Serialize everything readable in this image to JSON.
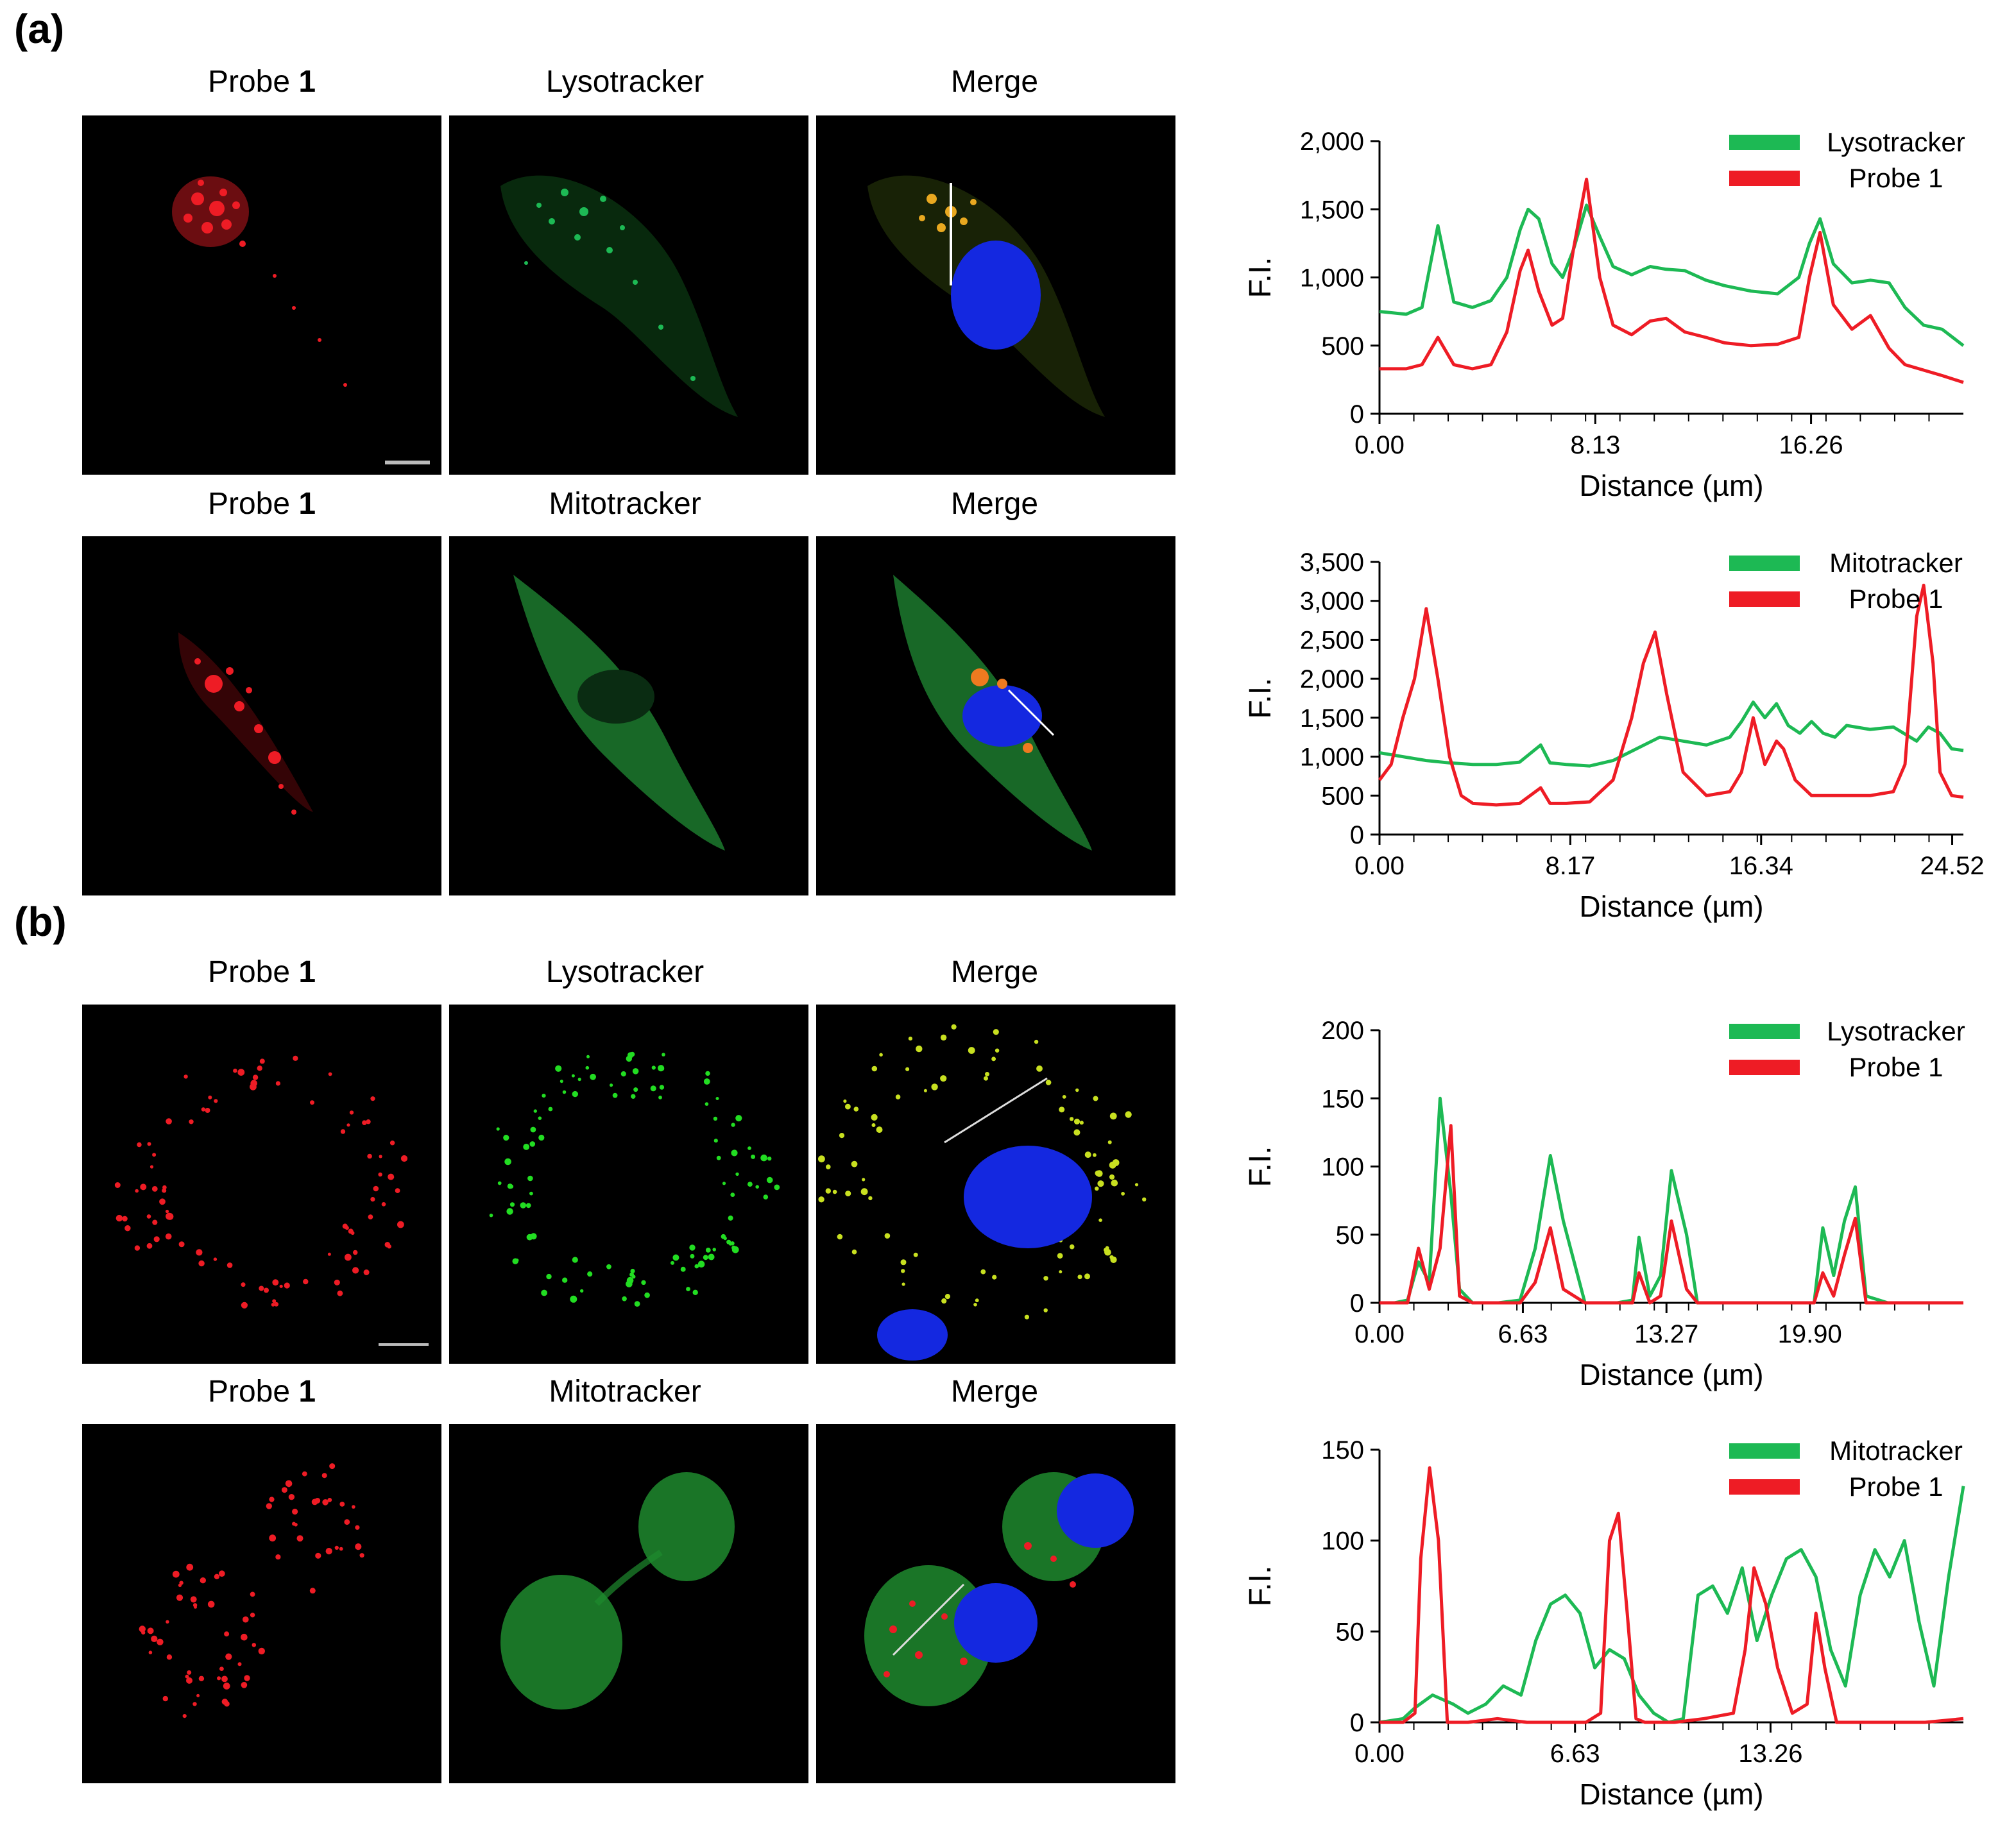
{
  "panel_letters": [
    "(a)",
    "(b)"
  ],
  "rows": [
    {
      "labels": [
        {
          "text": "Probe ",
          "num": "1"
        },
        {
          "text": "Lysotracker",
          "num": ""
        },
        {
          "text": "Merge",
          "num": ""
        }
      ]
    },
    {
      "labels": [
        {
          "text": "Probe ",
          "num": "1"
        },
        {
          "text": "Mitotracker",
          "num": ""
        },
        {
          "text": "Merge",
          "num": ""
        }
      ]
    },
    {
      "labels": [
        {
          "text": "Probe ",
          "num": "1"
        },
        {
          "text": "Lysotracker",
          "num": ""
        },
        {
          "text": "Merge",
          "num": ""
        }
      ]
    },
    {
      "labels": [
        {
          "text": "Probe ",
          "num": "1"
        },
        {
          "text": "Mitotracker",
          "num": ""
        },
        {
          "text": "Merge",
          "num": ""
        }
      ]
    }
  ],
  "colors": {
    "green": "#1db954",
    "red": "#ee1c25",
    "nucleus": "#1428e0"
  },
  "chart_data": [
    {
      "type": "line",
      "xlabel": "Distance (µm)",
      "ylabel": "F.I.",
      "xlim": [
        0,
        22.0
      ],
      "ylim": [
        0,
        2000
      ],
      "xticks": [
        0,
        8.13,
        16.26
      ],
      "xtick_labels": [
        "0.00",
        "8.13",
        "16.26"
      ],
      "yticks": [
        0,
        500,
        1000,
        1500,
        2000
      ],
      "ytick_labels": [
        "0",
        "500",
        "1,000",
        "1,500",
        "2,000"
      ],
      "legend": "top-right",
      "series": [
        {
          "name": "Lysotracker",
          "color": "#1db954",
          "x": [
            0,
            1,
            1.6,
            2.2,
            2.8,
            3.5,
            4.2,
            4.8,
            5.3,
            5.6,
            6.0,
            6.5,
            6.9,
            7.3,
            7.8,
            8.3,
            8.8,
            9.5,
            10.2,
            10.8,
            11.5,
            12.3,
            13.0,
            14.0,
            15.0,
            15.8,
            16.2,
            16.6,
            17.1,
            17.8,
            18.5,
            19.2,
            19.8,
            20.5,
            21.2,
            22.0
          ],
          "y": [
            750,
            730,
            780,
            1380,
            820,
            780,
            830,
            1000,
            1350,
            1500,
            1430,
            1100,
            1000,
            1200,
            1530,
            1300,
            1080,
            1020,
            1080,
            1060,
            1050,
            980,
            940,
            900,
            880,
            1000,
            1250,
            1430,
            1100,
            960,
            980,
            960,
            780,
            650,
            620,
            500
          ]
        },
        {
          "name": "Probe 1",
          "color": "#ee1c25",
          "x": [
            0,
            1,
            1.6,
            2.2,
            2.8,
            3.5,
            4.2,
            4.8,
            5.3,
            5.6,
            6.0,
            6.5,
            6.9,
            7.3,
            7.8,
            8.3,
            8.8,
            9.5,
            10.2,
            10.8,
            11.5,
            12.3,
            13.0,
            14.0,
            15.0,
            15.8,
            16.2,
            16.6,
            17.1,
            17.8,
            18.5,
            19.2,
            19.8,
            20.5,
            21.2,
            22.0
          ],
          "y": [
            330,
            330,
            360,
            560,
            360,
            330,
            360,
            600,
            1050,
            1200,
            900,
            650,
            700,
            1200,
            1720,
            1000,
            650,
            580,
            680,
            700,
            600,
            560,
            520,
            500,
            510,
            560,
            1000,
            1330,
            800,
            620,
            720,
            480,
            360,
            320,
            280,
            230
          ]
        }
      ]
    },
    {
      "type": "line",
      "xlabel": "Distance (µm)",
      "ylabel": "F.I.",
      "xlim": [
        0,
        25.0
      ],
      "ylim": [
        0,
        3500
      ],
      "xticks": [
        0,
        8.17,
        16.34,
        24.52
      ],
      "xtick_labels": [
        "0.00",
        "8.17",
        "16.34",
        "24.52"
      ],
      "yticks": [
        0,
        500,
        1000,
        1500,
        2000,
        2500,
        3000,
        3500
      ],
      "ytick_labels": [
        "0",
        "500",
        "1,000",
        "1,500",
        "2,000",
        "2,500",
        "3,000",
        "3,500"
      ],
      "legend": "top-right",
      "series": [
        {
          "name": "Mitotracker",
          "color": "#1db954",
          "x": [
            0,
            1,
            2,
            3,
            4,
            5,
            6,
            6.9,
            7.3,
            8,
            9,
            10,
            11,
            12,
            13,
            14,
            15,
            15.5,
            16,
            16.5,
            17,
            17.5,
            18,
            18.5,
            19,
            19.5,
            20,
            21,
            22,
            23,
            23.5,
            24,
            24.5,
            25
          ],
          "y": [
            1050,
            1000,
            950,
            920,
            900,
            900,
            930,
            1150,
            920,
            900,
            880,
            950,
            1100,
            1250,
            1200,
            1150,
            1250,
            1450,
            1700,
            1500,
            1680,
            1400,
            1300,
            1450,
            1300,
            1250,
            1400,
            1350,
            1380,
            1200,
            1380,
            1300,
            1100,
            1080
          ]
        },
        {
          "name": "Probe 1",
          "color": "#ee1c25",
          "x": [
            0,
            0.5,
            1,
            1.5,
            2,
            2.5,
            3,
            3.5,
            4,
            5,
            6,
            6.9,
            7.3,
            8,
            9,
            10,
            10.8,
            11.3,
            11.8,
            12.3,
            13,
            14,
            15,
            15.5,
            16,
            16.5,
            17,
            17.3,
            17.8,
            18.5,
            19,
            20,
            21,
            22,
            22.5,
            23,
            23.3,
            23.7,
            24,
            24.5,
            25
          ],
          "y": [
            700,
            900,
            1500,
            2000,
            2900,
            2000,
            1000,
            500,
            400,
            380,
            400,
            600,
            400,
            400,
            420,
            700,
            1500,
            2200,
            2600,
            1800,
            800,
            500,
            550,
            800,
            1500,
            900,
            1200,
            1100,
            700,
            500,
            500,
            500,
            500,
            550,
            900,
            2800,
            3200,
            2200,
            800,
            500,
            480
          ]
        }
      ]
    },
    {
      "type": "line",
      "xlabel": "Distance (µm)",
      "ylabel": "F.I.",
      "xlim": [
        0,
        27.0
      ],
      "ylim": [
        0,
        200
      ],
      "xticks": [
        0,
        6.63,
        13.27,
        19.9
      ],
      "xtick_labels": [
        "0.00",
        "6.63",
        "13.27",
        "19.90"
      ],
      "yticks": [
        0,
        50,
        100,
        150,
        200
      ],
      "ytick_labels": [
        "0",
        "50",
        "100",
        "150",
        "200"
      ],
      "legend": "top-right",
      "series": [
        {
          "name": "Lysotracker",
          "color": "#1db954",
          "x": [
            0,
            0.7,
            1.3,
            1.8,
            2.3,
            2.8,
            3.3,
            3.7,
            4.3,
            5.5,
            6.5,
            7.2,
            7.9,
            8.5,
            9.5,
            11.0,
            11.7,
            12.0,
            12.5,
            13.0,
            13.5,
            14.2,
            14.7,
            16.0,
            19.0,
            20.1,
            20.5,
            21.0,
            21.5,
            22.0,
            22.5,
            23.5,
            27.0
          ],
          "y": [
            0,
            0,
            2,
            30,
            15,
            150,
            80,
            10,
            0,
            0,
            2,
            40,
            108,
            60,
            0,
            0,
            2,
            48,
            5,
            20,
            97,
            50,
            0,
            0,
            0,
            0,
            55,
            20,
            60,
            85,
            5,
            0,
            0
          ]
        },
        {
          "name": "Probe 1",
          "color": "#ee1c25",
          "x": [
            0,
            0.7,
            1.3,
            1.8,
            2.3,
            2.8,
            3.3,
            3.7,
            4.3,
            5.5,
            6.5,
            7.2,
            7.9,
            8.5,
            9.5,
            11.0,
            11.7,
            12.0,
            12.5,
            13.0,
            13.5,
            14.2,
            14.7,
            16.0,
            19.0,
            20.1,
            20.5,
            21.0,
            21.5,
            22.0,
            22.5,
            23.5,
            27.0
          ],
          "y": [
            0,
            0,
            0,
            40,
            10,
            40,
            130,
            5,
            0,
            0,
            0,
            15,
            55,
            10,
            0,
            0,
            0,
            22,
            0,
            5,
            60,
            10,
            0,
            0,
            0,
            0,
            22,
            5,
            35,
            62,
            0,
            0,
            0
          ]
        }
      ]
    },
    {
      "type": "line",
      "xlabel": "Distance (µm)",
      "ylabel": "F.I.",
      "xlim": [
        0,
        19.8
      ],
      "ylim": [
        0,
        150
      ],
      "xticks": [
        0,
        6.63,
        13.26
      ],
      "xtick_labels": [
        "0.00",
        "6.63",
        "13.26"
      ],
      "yticks": [
        0,
        50,
        100,
        150
      ],
      "ytick_labels": [
        "0",
        "50",
        "100",
        "150"
      ],
      "legend": "top-right",
      "series": [
        {
          "name": "Mitotracker",
          "color": "#1db954",
          "x": [
            0,
            0.8,
            1.2,
            1.8,
            2.5,
            3.0,
            3.6,
            4.2,
            4.8,
            5.3,
            5.8,
            6.3,
            6.8,
            7.3,
            7.8,
            8.3,
            8.8,
            9.3,
            9.8,
            10.3,
            10.8,
            11.3,
            11.8,
            12.3,
            12.8,
            13.3,
            13.8,
            14.3,
            14.8,
            15.3,
            15.8,
            16.3,
            16.8,
            17.3,
            17.8,
            18.3,
            18.8,
            19.3,
            19.8
          ],
          "y": [
            0,
            2,
            8,
            15,
            10,
            5,
            10,
            20,
            15,
            45,
            65,
            70,
            60,
            30,
            40,
            35,
            15,
            5,
            0,
            2,
            70,
            75,
            60,
            85,
            45,
            70,
            90,
            95,
            80,
            40,
            20,
            70,
            95,
            80,
            100,
            55,
            20,
            80,
            130
          ]
        },
        {
          "name": "Probe 1",
          "color": "#ee1c25",
          "x": [
            0,
            0.8,
            1.2,
            1.4,
            1.7,
            2.0,
            2.3,
            3.0,
            4.0,
            5.0,
            6.0,
            7.0,
            7.5,
            7.8,
            8.1,
            8.4,
            8.7,
            9.0,
            10.0,
            11.0,
            12.0,
            12.4,
            12.7,
            13.1,
            13.5,
            14.0,
            14.5,
            14.8,
            15.1,
            15.5,
            16.5,
            17.5,
            18.5,
            19.8
          ],
          "y": [
            0,
            0,
            5,
            90,
            140,
            100,
            0,
            0,
            2,
            0,
            0,
            0,
            5,
            100,
            115,
            60,
            2,
            0,
            0,
            2,
            5,
            40,
            85,
            65,
            30,
            5,
            10,
            60,
            30,
            0,
            0,
            0,
            0,
            2
          ]
        }
      ]
    }
  ]
}
